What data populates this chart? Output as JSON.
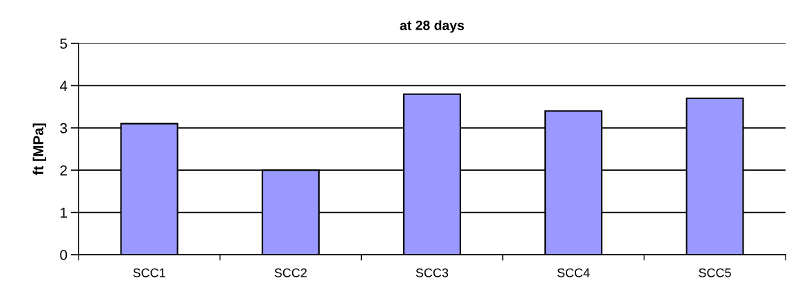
{
  "chart_data": {
    "type": "bar",
    "title": "at 28 days",
    "ylabel": "ft [MPa]",
    "categories": [
      "SCC1",
      "SCC2",
      "SCC3",
      "SCC4",
      "SCC5"
    ],
    "values": [
      3.1,
      2.0,
      3.8,
      3.4,
      3.7
    ],
    "color": "#9999ff",
    "ylim": [
      0,
      5
    ],
    "yticks": [
      0,
      1,
      2,
      3,
      4,
      5
    ],
    "grid": "y"
  }
}
